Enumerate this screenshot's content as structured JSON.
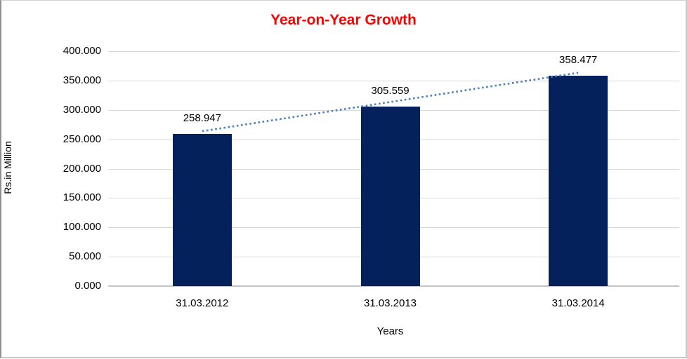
{
  "title": "Year-on-Year Growth",
  "colors": {
    "title": "#ff0000",
    "bar": "#04215c",
    "trendline": "#4a7ebb",
    "gridline": "#d9d9d9",
    "axis_line": "#c4c4c4",
    "text": "#000000",
    "frame_border": "#8f8f8f"
  },
  "chart_data": {
    "type": "bar",
    "title": "Year-on-Year Growth",
    "categories": [
      "31.03.2012",
      "31.03.2013",
      "31.03.2014"
    ],
    "values": [
      258.947,
      305.559,
      358.477
    ],
    "data_labels": [
      "258.947",
      "305.559",
      "358.477"
    ],
    "xlabel": "Years",
    "ylabel": "Rs.in Million",
    "ylim": [
      0,
      400
    ],
    "ytick_step": 50,
    "ytick_labels": [
      "0.000",
      "50.000",
      "100.000",
      "150.000",
      "200.000",
      "250.000",
      "300.000",
      "350.000",
      "400.000"
    ],
    "grid": "horizontal",
    "legend": "none",
    "trendline": "linear-dotted"
  }
}
